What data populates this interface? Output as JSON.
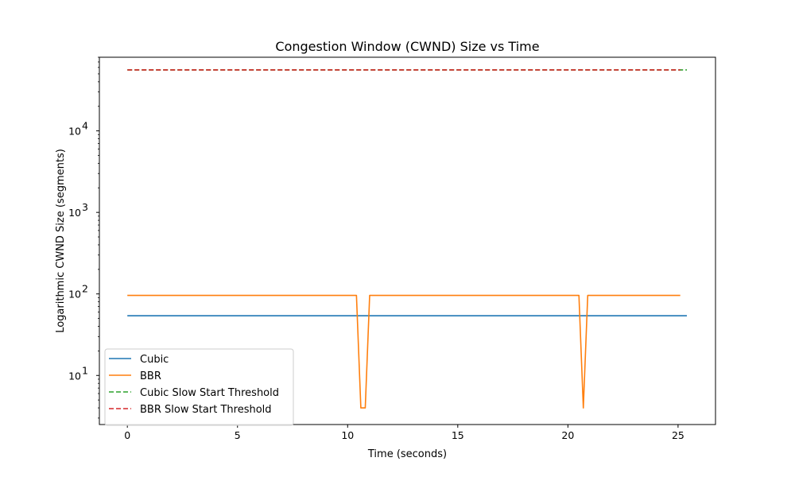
{
  "chart_data": {
    "type": "line",
    "title": "Congestion Window (CWND) Size vs Time",
    "xlabel": "Time (seconds)",
    "ylabel": "Logarithmic CWND Size (segments)",
    "y_scale": "log",
    "xlim": [
      -1.27,
      26.7
    ],
    "ylim": [
      2.5,
      80000
    ],
    "x_ticks": [
      {
        "value": 0,
        "label": "0"
      },
      {
        "value": 5,
        "label": "5"
      },
      {
        "value": 10,
        "label": "10"
      },
      {
        "value": 15,
        "label": "15"
      },
      {
        "value": 20,
        "label": "20"
      },
      {
        "value": 25,
        "label": "25"
      }
    ],
    "y_ticks": [
      {
        "value": 10,
        "base": "10",
        "exp": "1"
      },
      {
        "value": 100,
        "base": "10",
        "exp": "2"
      },
      {
        "value": 1000,
        "base": "10",
        "exp": "3"
      },
      {
        "value": 10000,
        "base": "10",
        "exp": "4"
      }
    ],
    "grid": false,
    "legend_position": "lower-left",
    "series": [
      {
        "name": "Cubic",
        "color": "#1f77b4",
        "dashed": false,
        "x": [
          0,
          25.4
        ],
        "y": [
          54,
          54
        ]
      },
      {
        "name": "BBR",
        "color": "#ff7f0e",
        "dashed": false,
        "x": [
          0,
          10.4,
          10.6,
          10.8,
          11.0,
          20.5,
          20.7,
          20.9,
          21.1,
          25.1
        ],
        "y": [
          96,
          96,
          4,
          4,
          96,
          96,
          4,
          96,
          96,
          96
        ]
      },
      {
        "name": "Cubic Slow Start Threshold",
        "color": "#2ca02c",
        "dashed": true,
        "x": [
          0,
          25.4
        ],
        "y": [
          56000,
          56000
        ]
      },
      {
        "name": "BBR Slow Start Threshold",
        "color": "#d62728",
        "dashed": true,
        "x": [
          0,
          25.1
        ],
        "y": [
          56000,
          56000
        ]
      }
    ]
  }
}
